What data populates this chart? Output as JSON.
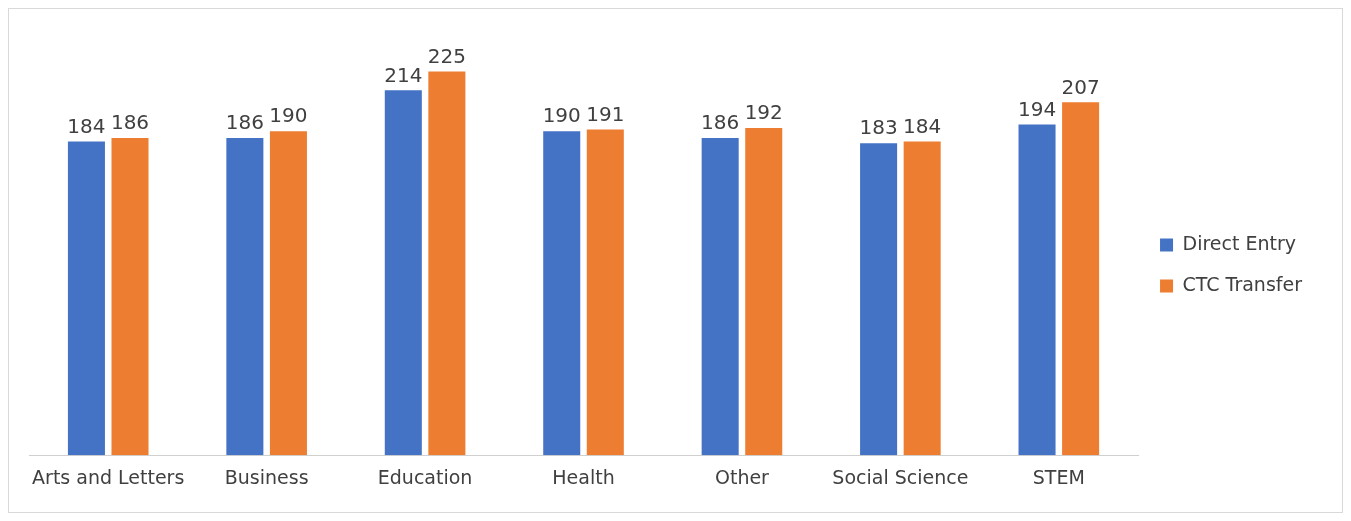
{
  "chart_data": {
    "type": "bar",
    "categories": [
      "Arts and Letters",
      "Business",
      "Education",
      "Health",
      "Other",
      "Social Science",
      "STEM"
    ],
    "series": [
      {
        "name": "Direct Entry",
        "color": "#4472c4",
        "values": [
          184,
          186,
          214,
          190,
          186,
          183,
          194
        ]
      },
      {
        "name": "CTC Transfer",
        "color": "#ed7d31",
        "values": [
          186,
          190,
          225,
          191,
          192,
          184,
          207
        ]
      }
    ],
    "tick_labels": "x",
    "data_labels": true,
    "legend": "right",
    "grid": false
  }
}
